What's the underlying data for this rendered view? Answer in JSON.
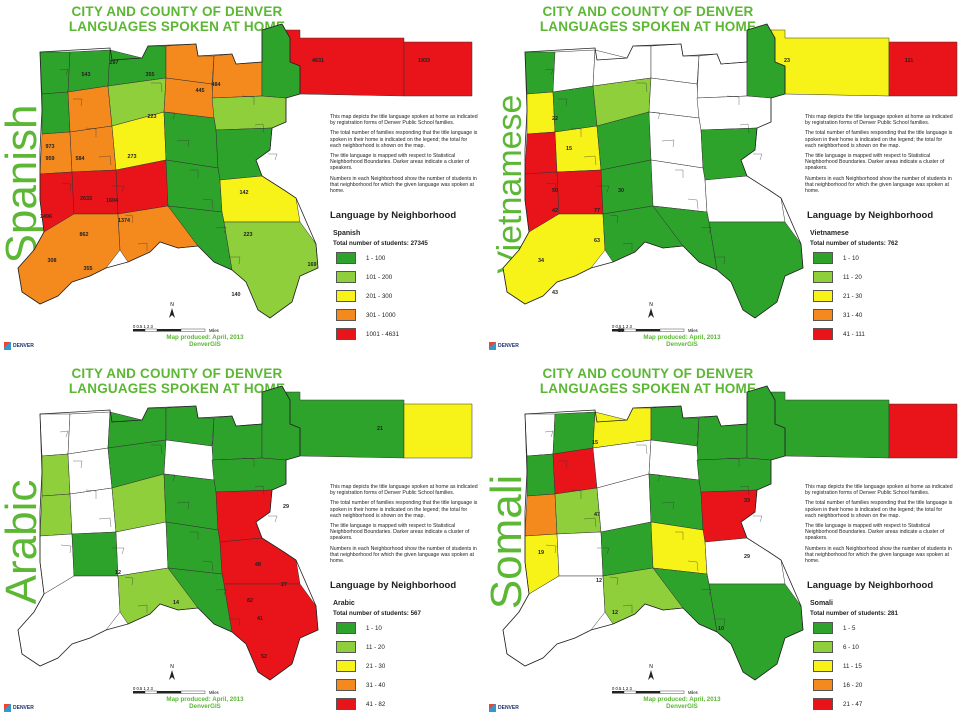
{
  "colors": {
    "title_green": "#5bb734",
    "dark_green": "#2ea32c",
    "light_green": "#8fcf3b",
    "yellow": "#f7f318",
    "orange": "#f48a1e",
    "red": "#e8141a",
    "white": "#ffffff"
  },
  "title_line1": "CITY AND COUNTY OF DENVER",
  "title_line2": "LANGUAGES SPOKEN AT HOME",
  "description": [
    "This map depicts the title language spoken at home as indicated by registration forms of Denver Public School families.",
    "The total number of families responding that the title language is spoken in their home is indicated on the legend; the total for each neighborhood is shown on the map.",
    "The title language is mapped with respect to Statistical Neighborhood Boundaries. Darker areas indicate a cluster of speakers.",
    "Numbers in each Neighborhood show the number of students in that neighborhood for which the given language was spoken at home."
  ],
  "legend_title": "Language by Neighborhood",
  "produced": "Map produced: April, 2013",
  "agency": "DenverGIS",
  "logo_text": "DENVER",
  "scale_text": "0   0.5   1        2         3\nMiles",
  "north_label": "N",
  "panels": [
    {
      "language": "Spanish",
      "total": "Total number of students: 27345",
      "legend": [
        {
          "range": "1 - 100",
          "color": "#2ea32c"
        },
        {
          "range": "101 - 200",
          "color": "#8fcf3b"
        },
        {
          "range": "201 - 300",
          "color": "#f7f318"
        },
        {
          "range": "301 - 1000",
          "color": "#f48a1e"
        },
        {
          "range": "1001 - 4631",
          "color": "#e8141a"
        }
      ],
      "numbers": [
        "4631",
        "1933",
        "2633",
        "1496",
        "1604",
        "1374",
        "973",
        "959",
        "584",
        "862",
        "355",
        "308",
        "297",
        "543",
        "355",
        "484",
        "445",
        "223",
        "273",
        "142",
        "140",
        "169",
        "223"
      ]
    },
    {
      "language": "Vietnamese",
      "total": "Total number of students: 762",
      "legend": [
        {
          "range": "1 - 10",
          "color": "#2ea32c"
        },
        {
          "range": "11 - 20",
          "color": "#8fcf3b"
        },
        {
          "range": "21 - 30",
          "color": "#f7f318"
        },
        {
          "range": "31 - 40",
          "color": "#f48a1e"
        },
        {
          "range": "41 - 111",
          "color": "#e8141a"
        }
      ],
      "numbers": [
        "23",
        "111",
        "22",
        "30",
        "50",
        "42",
        "77",
        "63",
        "43",
        "34",
        "28",
        "15"
      ]
    },
    {
      "language": "Arabic",
      "total": "Total number of students: 567",
      "legend": [
        {
          "range": "1 - 10",
          "color": "#2ea32c"
        },
        {
          "range": "11 - 20",
          "color": "#8fcf3b"
        },
        {
          "range": "21 - 30",
          "color": "#f7f318"
        },
        {
          "range": "31 - 40",
          "color": "#f48a1e"
        },
        {
          "range": "41 - 82",
          "color": "#e8141a"
        }
      ],
      "numbers": [
        "21",
        "29",
        "27",
        "48",
        "82",
        "41",
        "52",
        "12",
        "14"
      ]
    },
    {
      "language": "Somali",
      "total": "Total number of students: 281",
      "legend": [
        {
          "range": "1 - 5",
          "color": "#2ea32c"
        },
        {
          "range": "6 - 10",
          "color": "#8fcf3b"
        },
        {
          "range": "11 - 15",
          "color": "#f7f318"
        },
        {
          "range": "16 - 20",
          "color": "#f48a1e"
        },
        {
          "range": "21 - 47",
          "color": "#e8141a"
        }
      ],
      "numbers": [
        "15",
        "33",
        "47",
        "29",
        "19",
        "12",
        "12",
        "10"
      ]
    }
  ]
}
